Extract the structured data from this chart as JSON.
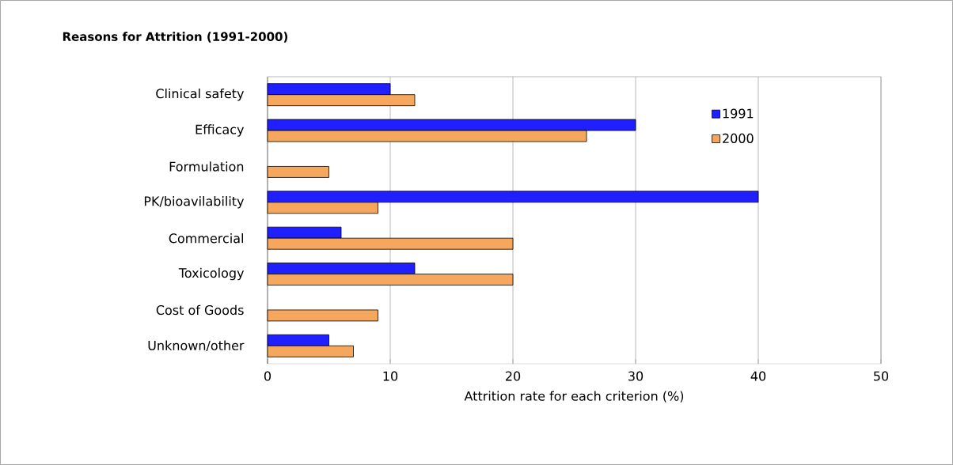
{
  "chart_data": {
    "type": "bar",
    "orientation": "horizontal",
    "title": "Reasons for Attrition (1991-2000)",
    "xlabel": "Attrition rate for each criterion (%)",
    "categories": [
      "Clinical safety",
      "Efficacy",
      "Formulation",
      "PK/bioavilability",
      "Commercial",
      "Toxicology",
      "Cost of Goods",
      "Unknown/other"
    ],
    "series": [
      {
        "name": "1991",
        "color": "#1f1fff",
        "values": [
          10,
          30,
          null,
          40,
          6,
          12,
          null,
          5
        ]
      },
      {
        "name": "2000",
        "color": "#f6a75e",
        "values": [
          12,
          26,
          5,
          9,
          20,
          20,
          9,
          7
        ]
      }
    ],
    "xlim": [
      0,
      50
    ],
    "xticks": [
      0,
      10,
      20,
      30,
      40,
      50
    ],
    "grid": "x",
    "legend": "top right"
  }
}
